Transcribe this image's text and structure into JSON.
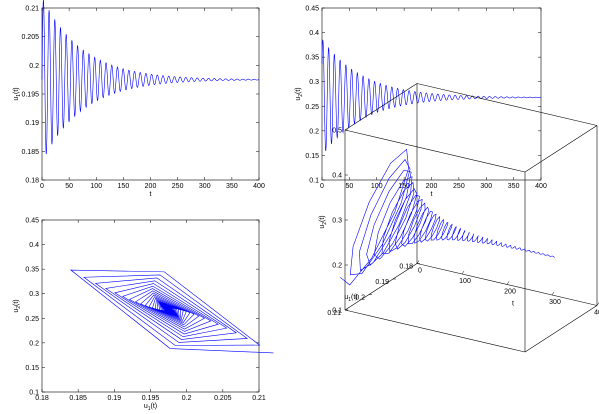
{
  "chart_data": [
    {
      "type": "line",
      "xlabel": "t",
      "ylabel": "u1(t)",
      "ylabel_main": "u",
      "ylabel_sub": "1",
      "ylabel_tail": "(t)",
      "xlim": [
        0,
        400
      ],
      "ylim": [
        0.18,
        0.21
      ],
      "xticks": [
        0,
        50,
        100,
        150,
        200,
        250,
        300,
        350,
        400
      ],
      "yticks": [
        0.18,
        0.185,
        0.19,
        0.195,
        0.2,
        0.205,
        0.21
      ],
      "xtick_labels": [
        "0",
        "50",
        "100",
        "150",
        "200",
        "250",
        "300",
        "350",
        "400"
      ],
      "ytick_labels": [
        "0.18",
        "0.185",
        "0.19",
        "0.195",
        "0.2",
        "0.205",
        "0.21"
      ],
      "series": [
        {
          "color": "#0000ff",
          "equilibrium": 0.1975,
          "initial_amplitude": 0.0145,
          "decay_rate": 0.0135,
          "period": 10.5,
          "t_end": 400
        }
      ]
    },
    {
      "type": "line",
      "xlabel": "t",
      "ylabel": "u2(t)",
      "ylabel_main": "u",
      "ylabel_sub": "2",
      "ylabel_tail": "(t)",
      "xlim": [
        0,
        400
      ],
      "ylim": [
        0.1,
        0.45
      ],
      "xticks": [
        0,
        50,
        100,
        150,
        200,
        250,
        300,
        350,
        400
      ],
      "yticks": [
        0.1,
        0.15,
        0.2,
        0.25,
        0.3,
        0.35,
        0.4,
        0.45
      ],
      "xtick_labels": [
        "0",
        "50",
        "100",
        "150",
        "200",
        "250",
        "300",
        "350",
        "400"
      ],
      "ytick_labels": [
        "0.1",
        "0.15",
        "0.2",
        "0.25",
        "0.3",
        "0.35",
        "0.4",
        "0.45"
      ],
      "series": [
        {
          "color": "#0000ff",
          "equilibrium": 0.268,
          "initial_amplitude": 0.12,
          "decay_rate": 0.0135,
          "period": 10.5,
          "t_end": 400
        }
      ]
    },
    {
      "type": "line",
      "xlabel": "u1(t)",
      "xlabel_main": "u",
      "xlabel_sub": "1",
      "xlabel_tail": "(t)",
      "ylabel": "u2(t)",
      "ylabel_main": "u",
      "ylabel_sub": "2",
      "ylabel_tail": "(t)",
      "xlim": [
        0.18,
        0.21
      ],
      "ylim": [
        0.1,
        0.45
      ],
      "xticks": [
        0.18,
        0.185,
        0.19,
        0.195,
        0.2,
        0.205,
        0.21
      ],
      "yticks": [
        0.1,
        0.15,
        0.2,
        0.25,
        0.3,
        0.35,
        0.4,
        0.45
      ],
      "xtick_labels": [
        "0.18",
        "0.185",
        "0.19",
        "0.195",
        "0.2",
        "0.205",
        "0.21"
      ],
      "ytick_labels": [
        "0.1",
        "0.15",
        "0.2",
        "0.25",
        "0.3",
        "0.35",
        "0.4",
        "0.45"
      ],
      "series": [
        {
          "color": "#0000ff",
          "kind": "phase_spiral",
          "center": [
            0.1975,
            0.268
          ],
          "amp_u1": 0.0145,
          "amp_u2": 0.12,
          "phase_lag": 2.4,
          "decay_rate": 0.0135,
          "period": 10.5,
          "t_end": 400
        }
      ]
    },
    {
      "type": "line",
      "kind": "3d",
      "xlabel": "t",
      "ylabel": "u1(t)",
      "ylabel_main": "u",
      "ylabel_sub": "1",
      "ylabel_tail": "(t)",
      "zlabel": "u2(t)",
      "zlabel_main": "u",
      "zlabel_sub": "2",
      "zlabel_tail": "(t)",
      "tlim": [
        0,
        400
      ],
      "u1lim": [
        0.18,
        0.21
      ],
      "u2lim": [
        0.1,
        0.5
      ],
      "tticks": [
        "0",
        "100",
        "200",
        "300",
        "400"
      ],
      "u1ticks": [
        "0.21",
        "0.2",
        "0.19",
        "0.18"
      ],
      "u2ticks": [
        "0.1",
        "0.2",
        "0.3",
        "0.4",
        "0.5"
      ],
      "box": "on",
      "series": [
        {
          "color": "#0000ff",
          "center": [
            0.1975,
            0.268
          ],
          "t_end": 400
        }
      ]
    }
  ]
}
